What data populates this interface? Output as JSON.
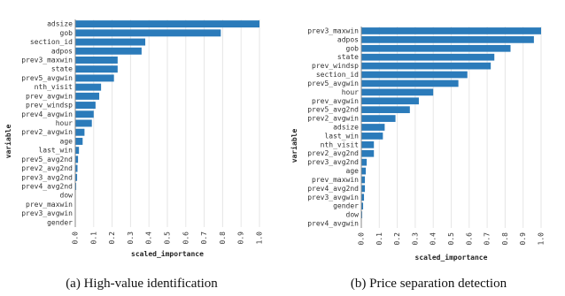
{
  "chart_data": [
    {
      "type": "bar",
      "orientation": "horizontal",
      "xlabel": "scaled_importance",
      "ylabel": "variable",
      "xlim": [
        0,
        1
      ],
      "xticks": [
        "0.0",
        "0.1",
        "0.2",
        "0.3",
        "0.4",
        "0.5",
        "0.6",
        "0.7",
        "0.8",
        "0.9",
        "1.0"
      ],
      "grid": true,
      "bar_color": "#2b7bba",
      "caption": "(a)  High-value identification",
      "categories": [
        "adsize",
        "gob",
        "section_id",
        "adpos",
        "prev3_maxwin",
        "state",
        "prev5_avgwin",
        "nth_visit",
        "prev_avgwin",
        "prev_windsp",
        "prev4_avgwin",
        "hour",
        "prev2_avgwin",
        "age",
        "last_win",
        "prev5_avg2nd",
        "prev2_avg2nd",
        "prev3_avg2nd",
        "prev4_avg2nd",
        "dow",
        "prev_maxwin",
        "prev3_avgwin",
        "gender"
      ],
      "values": [
        1.0,
        0.79,
        0.38,
        0.36,
        0.23,
        0.23,
        0.21,
        0.14,
        0.13,
        0.11,
        0.1,
        0.09,
        0.05,
        0.04,
        0.02,
        0.015,
        0.012,
        0.01,
        0.005,
        0.002,
        0.001,
        0.001,
        0.0
      ]
    },
    {
      "type": "bar",
      "orientation": "horizontal",
      "xlabel": "scaled_importance",
      "ylabel": "variable",
      "xlim": [
        0,
        1
      ],
      "xticks": [
        "0.0",
        "0.1",
        "0.2",
        "0.3",
        "0.4",
        "0.5",
        "0.6",
        "0.7",
        "0.8",
        "0.9",
        "1.0"
      ],
      "grid": true,
      "bar_color": "#2b7bba",
      "caption": "(b)  Price separation detection",
      "categories": [
        "prev3_maxwin",
        "adpos",
        "gob",
        "state",
        "prev_windsp",
        "section_id",
        "prev5_avgwin",
        "hour",
        "prev_avgwin",
        "prev5_avg2nd",
        "prev2_avgwin",
        "adsize",
        "last_win",
        "nth_visit",
        "prev2_avg2nd",
        "prev3_avg2nd",
        "age",
        "prev_maxwin",
        "prev4_avg2nd",
        "prev3_avgwin",
        "gender",
        "dow",
        "prev4_avgwin"
      ],
      "values": [
        1.0,
        0.96,
        0.83,
        0.74,
        0.72,
        0.59,
        0.54,
        0.4,
        0.32,
        0.27,
        0.19,
        0.13,
        0.12,
        0.07,
        0.07,
        0.03,
        0.025,
        0.02,
        0.02,
        0.015,
        0.01,
        0.005,
        0.001
      ]
    }
  ]
}
